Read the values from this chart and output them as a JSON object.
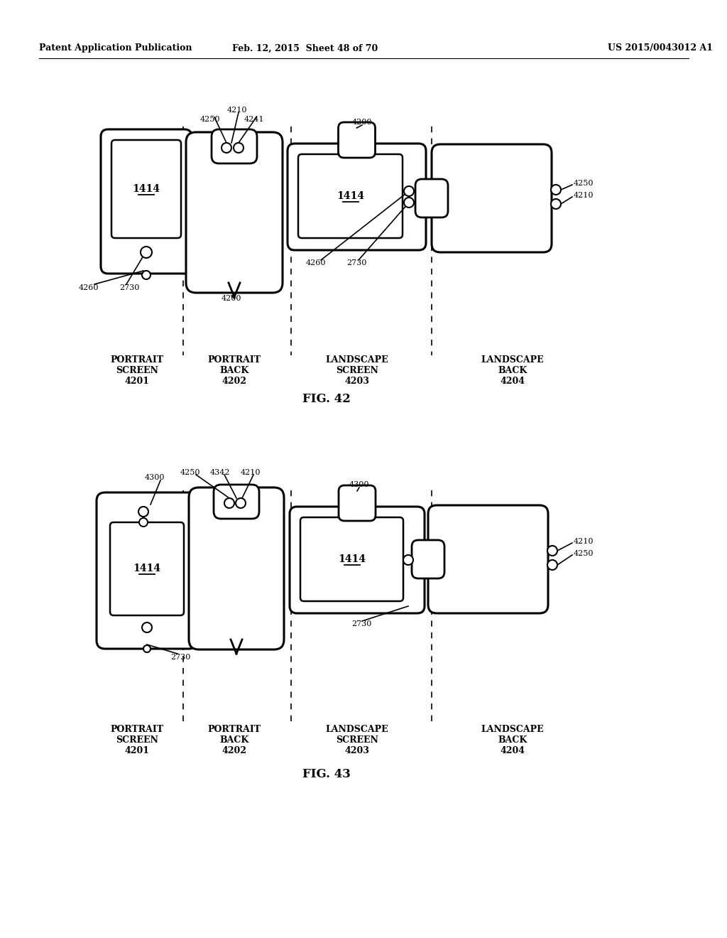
{
  "bg_color": "#ffffff",
  "header_left": "Patent Application Publication",
  "header_mid": "Feb. 12, 2015  Sheet 48 of 70",
  "header_right": "US 2015/0043012 A1",
  "fig42_label": "FIG. 42",
  "fig43_label": "FIG. 43"
}
